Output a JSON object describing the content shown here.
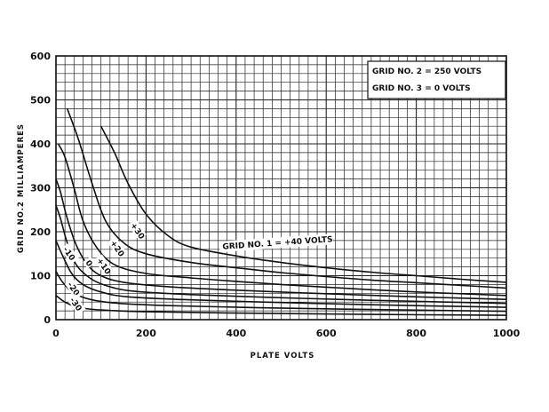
{
  "chart_data": {
    "type": "line",
    "title": "",
    "xlabel": "PLATE VOLTS",
    "ylabel": "GRID NO.2 MILLIAMPERES",
    "xlim": [
      0,
      1000
    ],
    "ylim": [
      0,
      600
    ],
    "xticks": [
      0,
      200,
      400,
      600,
      800,
      1000
    ],
    "yticks": [
      0,
      100,
      200,
      300,
      400,
      500,
      600
    ],
    "x_tick_labels": [
      "0",
      "200",
      "400",
      "600",
      "800",
      "1000"
    ],
    "y_tick_labels": [
      "0",
      "100",
      "200",
      "300",
      "400",
      "500",
      "600"
    ],
    "grid": true,
    "legend": {
      "placement": "top-right",
      "lines": [
        "GRID NO. 2 = 250 VOLTS",
        "GRID NO. 3 = 0 VOLTS"
      ]
    },
    "series": [
      {
        "name": "GRID NO. 1 = +40 VOLTS",
        "x": [
          100,
          130,
          160,
          200,
          250,
          300,
          400,
          500,
          600,
          700,
          800,
          900,
          1000
        ],
        "y": [
          440,
          380,
          310,
          240,
          190,
          165,
          145,
          130,
          118,
          108,
          100,
          92,
          85
        ]
      },
      {
        "name": "+30",
        "x": [
          25,
          50,
          80,
          110,
          150,
          200,
          300,
          400,
          500,
          600,
          700,
          800,
          900,
          1000
        ],
        "y": [
          480,
          410,
          310,
          225,
          175,
          150,
          130,
          118,
          107,
          98,
          90,
          84,
          78,
          72
        ]
      },
      {
        "name": "+20",
        "x": [
          5,
          20,
          40,
          60,
          90,
          130,
          200,
          300,
          400,
          500,
          600,
          700,
          800,
          900,
          1000
        ],
        "y": [
          400,
          370,
          300,
          225,
          165,
          125,
          105,
          95,
          87,
          80,
          74,
          68,
          63,
          59,
          55
        ]
      },
      {
        "name": "+10",
        "x": [
          0,
          10,
          25,
          45,
          70,
          100,
          150,
          250,
          400,
          600,
          800,
          1000
        ],
        "y": [
          320,
          290,
          230,
          170,
          125,
          100,
          85,
          75,
          67,
          59,
          52,
          46
        ]
      },
      {
        "name": "0",
        "x": [
          0,
          10,
          25,
          45,
          75,
          110,
          170,
          300,
          500,
          700,
          1000
        ],
        "y": [
          260,
          230,
          175,
          125,
          95,
          78,
          65,
          57,
          50,
          44,
          37
        ]
      },
      {
        "name": "-10",
        "x": [
          0,
          15,
          35,
          60,
          100,
          160,
          300,
          500,
          700,
          1000
        ],
        "y": [
          180,
          145,
          105,
          80,
          63,
          52,
          45,
          39,
          34,
          28
        ]
      },
      {
        "name": "-20",
        "x": [
          0,
          15,
          40,
          80,
          140,
          250,
          450,
          700,
          1000
        ],
        "y": [
          110,
          85,
          60,
          45,
          37,
          32,
          27,
          23,
          19
        ]
      },
      {
        "name": "-30",
        "x": [
          0,
          20,
          50,
          100,
          200,
          400,
          700,
          1000
        ],
        "y": [
          55,
          40,
          28,
          22,
          18,
          15,
          12,
          10
        ]
      }
    ],
    "annotations": [
      {
        "text": "+30",
        "x": 165,
        "y": 215,
        "rotate": 55
      },
      {
        "text": "+20",
        "x": 120,
        "y": 175,
        "rotate": 55
      },
      {
        "text": "+10",
        "x": 90,
        "y": 135,
        "rotate": 55
      },
      {
        "text": "0",
        "x": 65,
        "y": 130,
        "rotate": 55
      },
      {
        "text": "-10",
        "x": 15,
        "y": 160,
        "rotate": 55
      },
      {
        "text": "-20",
        "x": 25,
        "y": 80,
        "rotate": 55
      },
      {
        "text": "-30",
        "x": 30,
        "y": 45,
        "rotate": 55
      },
      {
        "text": "GRID NO. 1 = +40 VOLTS",
        "x": 370,
        "y": 160,
        "rotate": -4
      }
    ]
  }
}
